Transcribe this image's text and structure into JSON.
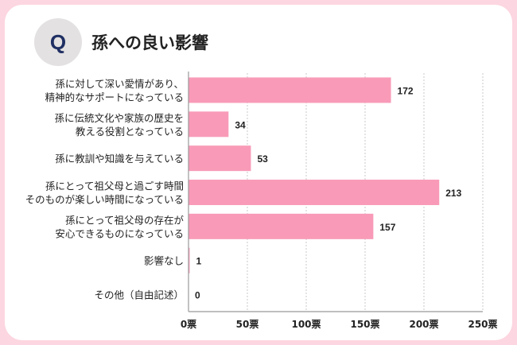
{
  "header": {
    "q_badge": "Q",
    "title": "孫への良い影響"
  },
  "chart_data": {
    "type": "bar",
    "orientation": "horizontal",
    "title": "孫への良い影響",
    "categories": [
      [
        "孫に対して深い愛情があり、",
        "精神的なサポートになっている"
      ],
      [
        "孫に伝統文化や家族の歴史を",
        "教える役割となっている"
      ],
      [
        "孫に教訓や知識を与えている"
      ],
      [
        "孫にとって祖父母と過ごす時間",
        "そのものが楽しい時間になっている"
      ],
      [
        "孫にとって祖父母の存在が",
        "安心できるものになっている"
      ],
      [
        "影響なし"
      ],
      [
        "その他（自由記述）"
      ]
    ],
    "values": [
      172,
      34,
      53,
      213,
      157,
      1,
      0
    ],
    "xlim": [
      0,
      250
    ],
    "xticks": [
      0,
      50,
      100,
      150,
      200,
      250
    ],
    "xtick_labels": [
      "0票",
      "50票",
      "100票",
      "150票",
      "200票",
      "250票"
    ],
    "grid": true,
    "bar_color": "#f99bb8"
  }
}
